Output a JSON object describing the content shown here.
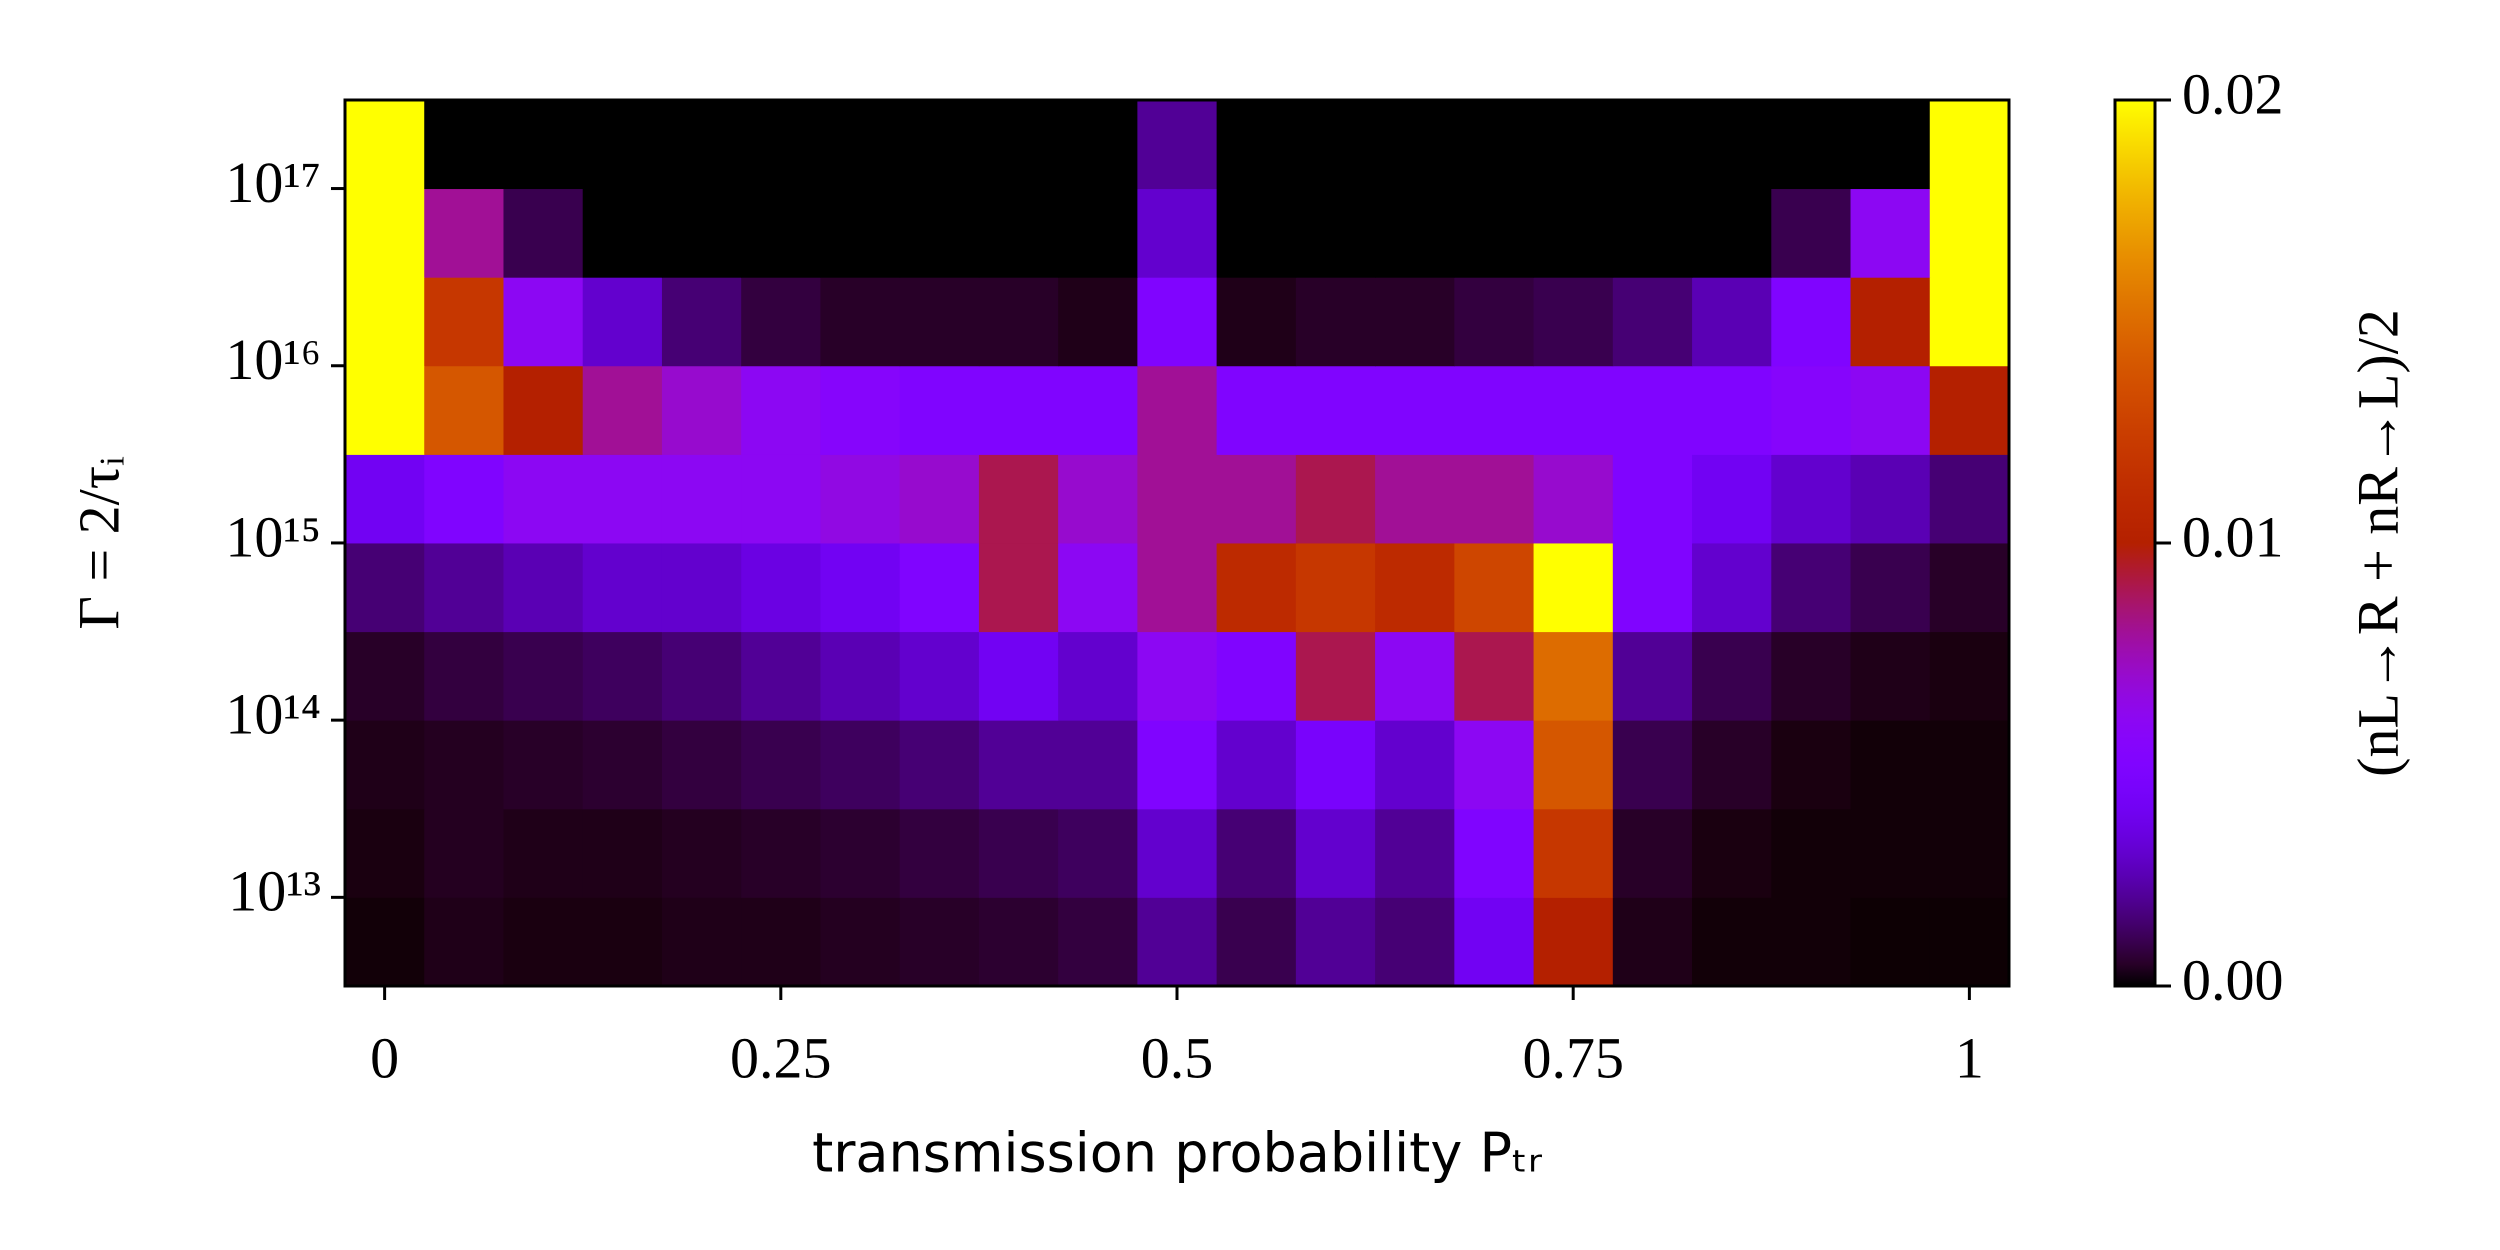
{
  "chart_data": {
    "type": "heatmap",
    "xlabel": "transmission probability Pₜᵣ",
    "ylabel": "Γ = 2/τᵢ",
    "xlim": [
      -0.025,
      1.025
    ],
    "ylim": [
      3160000000000.0,
      3.16e+17
    ],
    "log_y": true,
    "xticks": [
      0,
      0.25,
      0.5,
      0.75,
      1
    ],
    "yticks": [
      {
        "value": 10000000000000.0,
        "label": "10¹³"
      },
      {
        "value": 100000000000000.0,
        "label": "10¹⁴"
      },
      {
        "value": 1000000000000000.0,
        "label": "10¹⁵"
      },
      {
        "value": 1e+16,
        "label": "10¹⁶"
      },
      {
        "value": 1e+17,
        "label": "10¹⁷"
      }
    ],
    "colormap": "gnuplot",
    "xbins": [
      -0.025,
      0.025,
      0.075,
      0.125,
      0.175,
      0.225,
      0.275,
      0.325,
      0.375,
      0.425,
      0.475,
      0.525,
      0.575,
      0.625,
      0.675,
      0.725,
      0.775,
      0.825,
      0.875,
      0.925,
      0.975,
      1.025
    ],
    "ybins": [
      3160000000000.0,
      10000000000000.0,
      31600000000000.0,
      100000000000000.0,
      316000000000000.0,
      1000000000000000.0,
      3160000000000000.0,
      1e+16,
      3.16e+16,
      1e+17,
      3.16e+17
    ],
    "z": [
      [
        0.0001,
        0.0003,
        0.0002,
        0.0002,
        0.0003,
        0.0003,
        0.0004,
        0.0005,
        0.0006,
        0.0008,
        0.002,
        0.001,
        0.002,
        0.0015,
        0.004,
        0.01,
        0.0003,
        0.0001,
        0.0001,
        5e-05,
        5e-05
      ],
      [
        0.0002,
        0.0004,
        0.0003,
        0.0003,
        0.0004,
        0.0005,
        0.0006,
        0.0008,
        0.001,
        0.0012,
        0.003,
        0.0015,
        0.003,
        0.002,
        0.005,
        0.012,
        0.0005,
        0.0002,
        0.0001,
        0.0001,
        0.0001
      ],
      [
        0.0003,
        0.0004,
        0.0005,
        0.0006,
        0.0008,
        0.001,
        0.0012,
        0.0015,
        0.002,
        0.002,
        0.005,
        0.003,
        0.0045,
        0.003,
        0.006,
        0.014,
        0.001,
        0.0005,
        0.0002,
        0.0001,
        0.0001
      ],
      [
        0.0005,
        0.0008,
        0.001,
        0.0012,
        0.0015,
        0.002,
        0.0025,
        0.003,
        0.004,
        0.003,
        0.006,
        0.005,
        0.009,
        0.006,
        0.009,
        0.015,
        0.002,
        0.001,
        0.0005,
        0.0003,
        0.0002
      ],
      [
        0.0015,
        0.002,
        0.0025,
        0.003,
        0.003,
        0.0035,
        0.004,
        0.005,
        0.009,
        0.006,
        0.008,
        0.011,
        0.012,
        0.011,
        0.013,
        0.02,
        0.005,
        0.003,
        0.0015,
        0.001,
        0.0005
      ],
      [
        0.004,
        0.005,
        0.006,
        0.006,
        0.006,
        0.006,
        0.0065,
        0.007,
        0.009,
        0.007,
        0.008,
        0.008,
        0.009,
        0.008,
        0.008,
        0.007,
        0.005,
        0.004,
        0.003,
        0.0025,
        0.0015
      ],
      [
        0.025,
        0.014,
        0.01,
        0.008,
        0.007,
        0.006,
        0.0055,
        0.005,
        0.005,
        0.005,
        0.008,
        0.005,
        0.005,
        0.005,
        0.005,
        0.005,
        0.005,
        0.005,
        0.0055,
        0.006,
        0.01
      ],
      [
        0.025,
        0.012,
        0.006,
        0.003,
        0.0015,
        0.0008,
        0.0005,
        0.0005,
        0.0005,
        0.0003,
        0.005,
        0.0003,
        0.0005,
        0.0005,
        0.0008,
        0.001,
        0.0015,
        0.0025,
        0.005,
        0.01,
        0.02
      ],
      [
        0.025,
        0.008,
        0.001,
        0,
        0,
        0,
        0,
        0,
        0,
        0,
        0.003,
        0,
        0,
        0,
        0,
        0,
        0,
        0,
        0.001,
        0.006,
        0.02
      ],
      [
        0.025,
        0,
        0,
        0,
        0,
        0,
        0,
        0,
        0,
        0,
        0.002,
        0,
        0,
        0,
        0,
        0,
        0,
        0,
        0,
        0,
        0.02
      ]
    ],
    "colorbar": {
      "label": "(nL→R + nR→L)/2",
      "lim": [
        0,
        0.02
      ],
      "ticks": [
        {
          "value": 0,
          "label": "0.00"
        },
        0.01,
        0.02
      ]
    }
  }
}
